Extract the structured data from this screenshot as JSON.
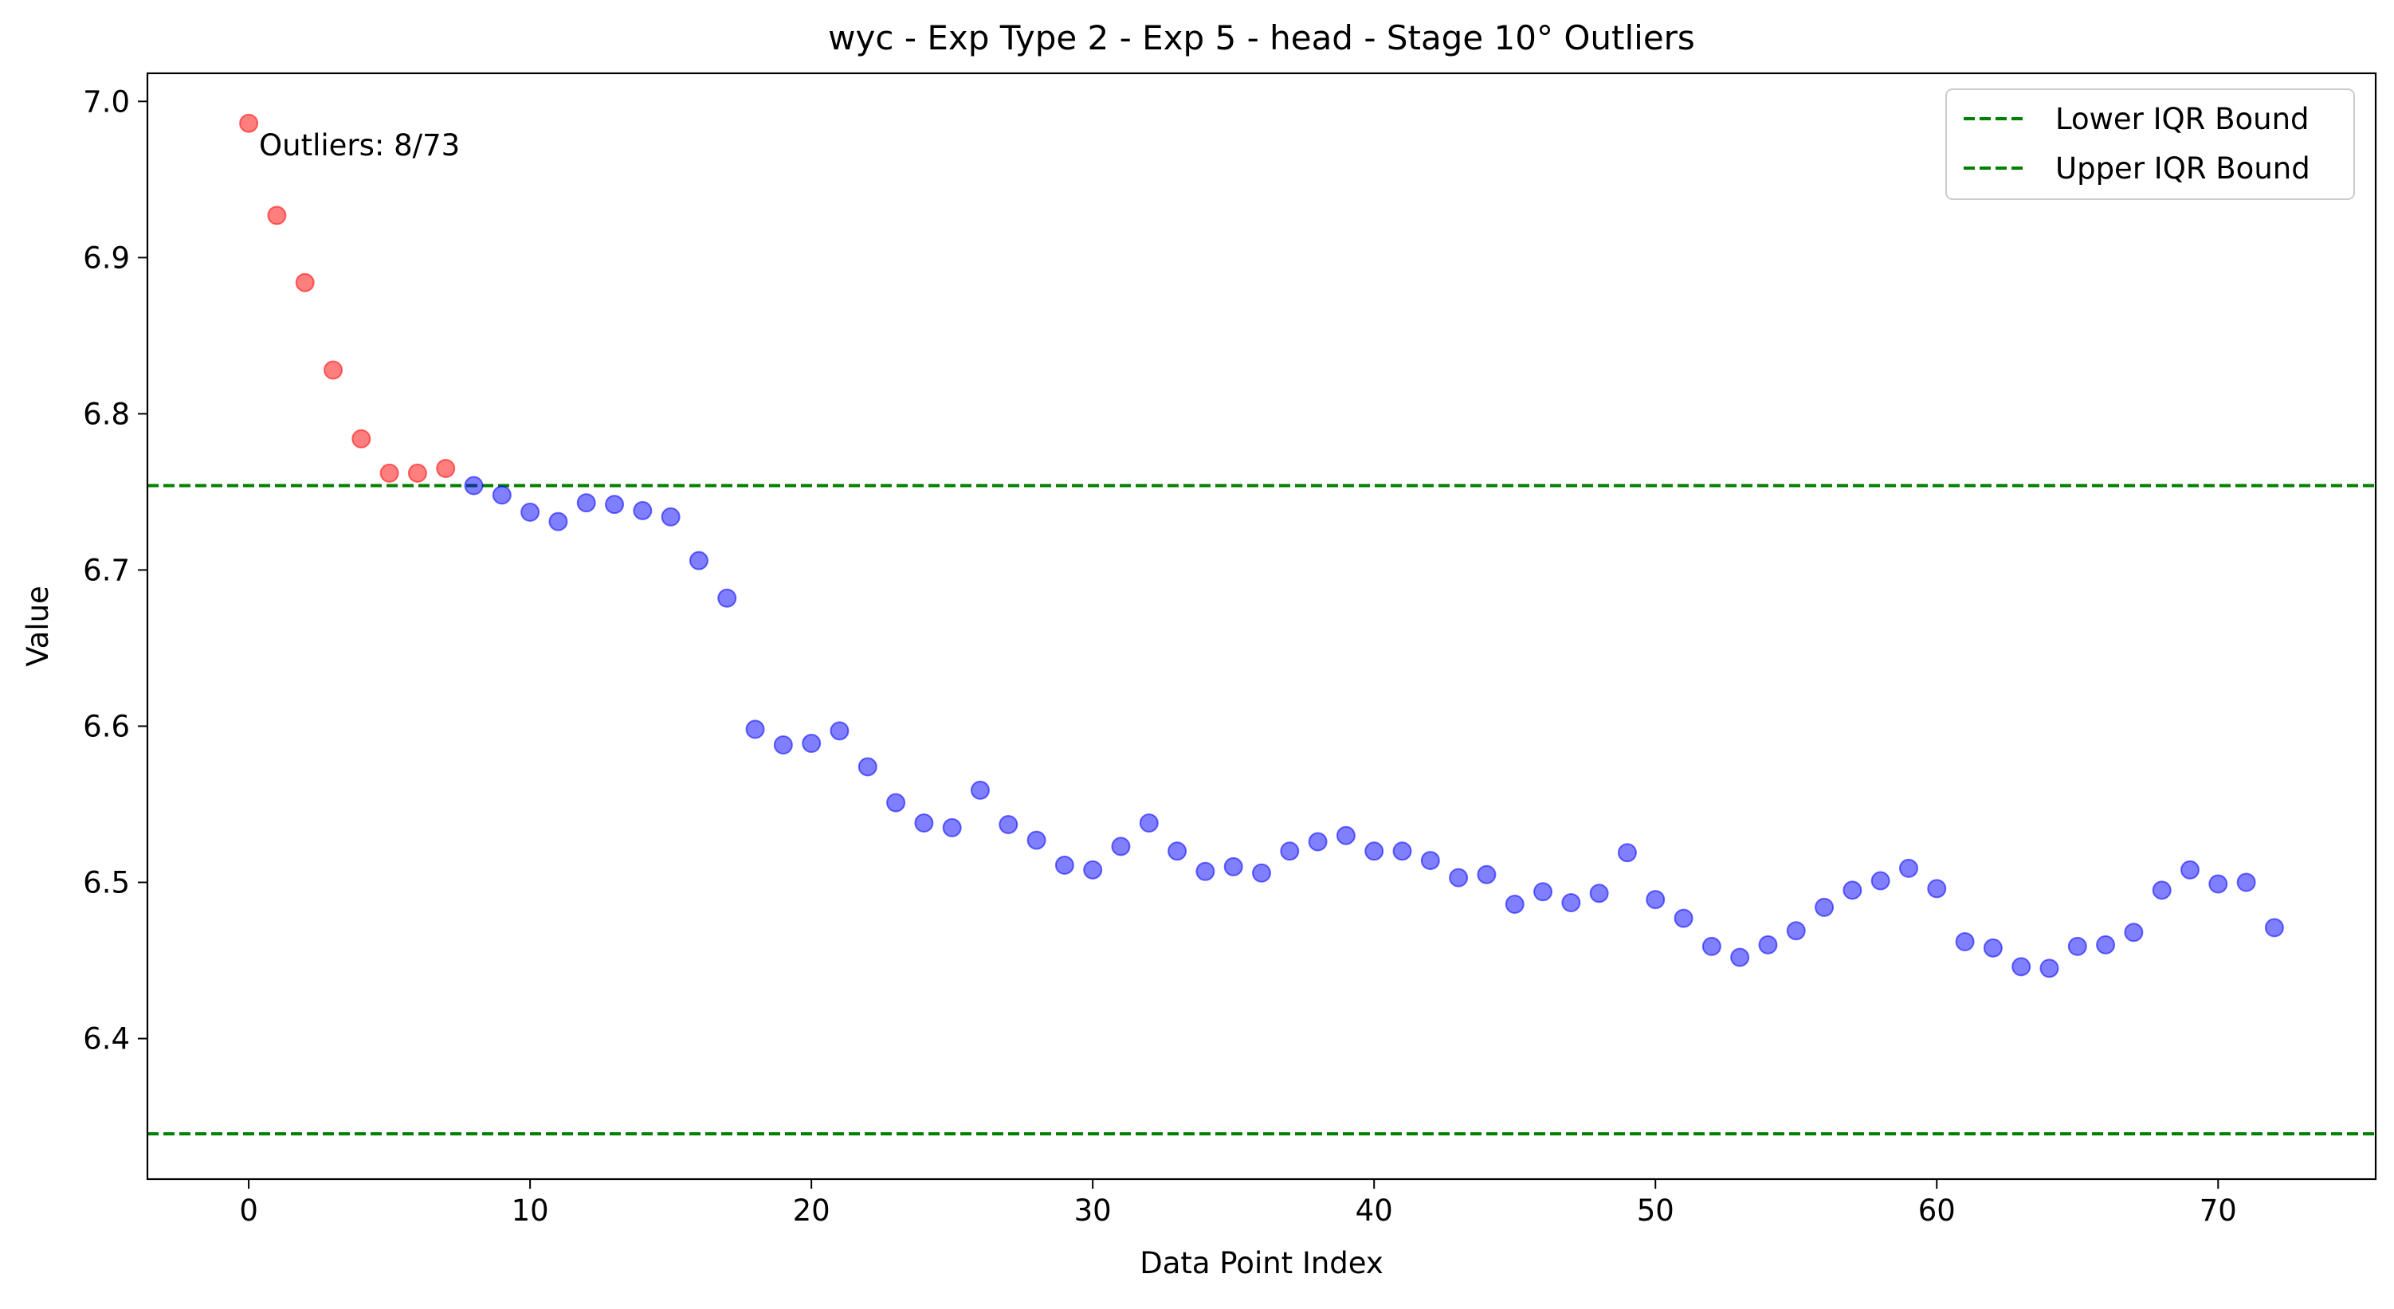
{
  "chart_data": {
    "type": "scatter",
    "title": "wyc - Exp Type 2 - Exp 5 - head - Stage 10° Outliers",
    "xlabel": "Data Point Index",
    "ylabel": "Value",
    "xlim": [
      -3.6,
      75.6
    ],
    "ylim": [
      6.31,
      7.018
    ],
    "xticks": [
      0,
      10,
      20,
      30,
      40,
      50,
      60,
      70
    ],
    "yticks": [
      6.4,
      6.5,
      6.6,
      6.7,
      6.8,
      6.9,
      7.0
    ],
    "ytick_labels": [
      "6.4",
      "6.5",
      "6.6",
      "6.7",
      "6.8",
      "6.9",
      "7.0"
    ],
    "grid": false,
    "annotation": "Outliers: 8/73",
    "legend": {
      "placement": "top-right",
      "entries": [
        "Lower IQR Bound",
        "Upper IQR Bound"
      ]
    },
    "colors": {
      "outlier": "#ff0000",
      "normal": "#0000ff",
      "bound": "#008000"
    },
    "hlines": [
      {
        "name": "Lower IQR Bound",
        "y": 6.339
      },
      {
        "name": "Upper IQR Bound",
        "y": 6.754
      }
    ],
    "series": [
      {
        "role": "outlier",
        "x": [
          0,
          1,
          2,
          3,
          4,
          5,
          6,
          7
        ],
        "y": [
          6.986,
          6.927,
          6.884,
          6.828,
          6.784,
          6.762,
          6.762,
          6.765
        ]
      },
      {
        "role": "normal",
        "x": [
          8,
          9,
          10,
          11,
          12,
          13,
          14,
          15,
          16,
          17,
          18,
          19,
          20,
          21,
          22,
          23,
          24,
          25,
          26,
          27,
          28,
          29,
          30,
          31,
          32,
          33,
          34,
          35,
          36,
          37,
          38,
          39,
          40,
          41,
          42,
          43,
          44,
          45,
          46,
          47,
          48,
          49,
          50,
          51,
          52,
          53,
          54,
          55,
          56,
          57,
          58,
          59,
          60,
          61,
          62,
          63,
          64,
          65,
          66,
          67,
          68,
          69,
          70,
          71,
          72
        ],
        "y": [
          6.754,
          6.748,
          6.737,
          6.731,
          6.743,
          6.742,
          6.738,
          6.734,
          6.706,
          6.682,
          6.598,
          6.588,
          6.589,
          6.597,
          6.574,
          6.551,
          6.538,
          6.535,
          6.559,
          6.537,
          6.527,
          6.511,
          6.508,
          6.523,
          6.538,
          6.52,
          6.507,
          6.51,
          6.506,
          6.52,
          6.526,
          6.53,
          6.52,
          6.52,
          6.514,
          6.503,
          6.505,
          6.486,
          6.494,
          6.487,
          6.493,
          6.519,
          6.489,
          6.477,
          6.459,
          6.452,
          6.46,
          6.469,
          6.484,
          6.495,
          6.501,
          6.509,
          6.496,
          6.462,
          6.458,
          6.446,
          6.445,
          6.459,
          6.46,
          6.468,
          6.495,
          6.508,
          6.499,
          6.5,
          6.471
        ]
      }
    ]
  }
}
